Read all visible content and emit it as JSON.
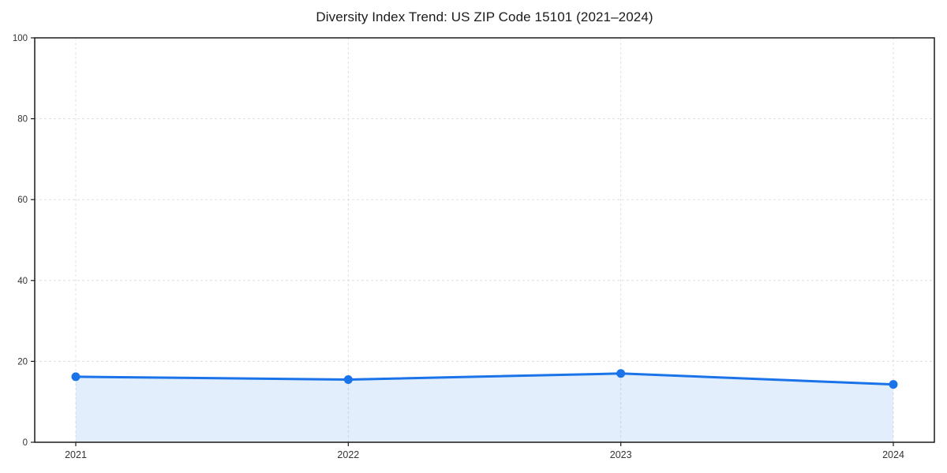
{
  "chart_data": {
    "type": "line",
    "title": "Diversity Index Trend: US ZIP Code 15101 (2021–2024)",
    "categories": [
      "2021",
      "2022",
      "2023",
      "2024"
    ],
    "series": [
      {
        "name": "Diversity Index",
        "values": [
          16.2,
          15.5,
          17.0,
          14.3
        ]
      }
    ],
    "xlabel": "",
    "ylabel": "",
    "ylim": [
      0,
      100
    ],
    "yticks": [
      0,
      20,
      40,
      60,
      80,
      100
    ],
    "grid": true,
    "grid_style": "dashed",
    "legend_position": "none",
    "area_fill": true,
    "area_fill_opacity": 0.12,
    "marker": "circle",
    "colors": {
      "line": "#1a73e8",
      "area": "#1a73e8",
      "grid": "#dfdfdf",
      "spine": "#1a1a1a",
      "tick_label": "#333333",
      "title": "#1a1a1a",
      "background": "#ffffff"
    }
  }
}
